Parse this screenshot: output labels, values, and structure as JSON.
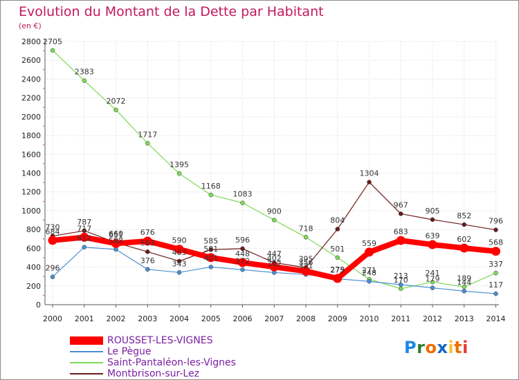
{
  "title": "Evolution du Montant de la Dette par Habitant",
  "unit": "(en €)",
  "logo": {
    "letters": [
      "P",
      "r",
      "o",
      "x",
      "i",
      "t",
      "i"
    ],
    "colors": [
      "#1e88e5",
      "#2e7d32",
      "#ef6c00",
      "#1565c0",
      "#fbc02d",
      "#ef6c00",
      "#e53935"
    ]
  },
  "chart_data": {
    "type": "line",
    "x": [
      "2000",
      "2001",
      "2002",
      "2003",
      "2004",
      "2005",
      "2006",
      "2007",
      "2008",
      "2009",
      "2010",
      "2011",
      "2012",
      "2013",
      "2014"
    ],
    "ylim": [
      0,
      2800
    ],
    "yticks": [
      0,
      200,
      400,
      600,
      800,
      1000,
      1200,
      1400,
      1600,
      1800,
      2000,
      2200,
      2400,
      2600,
      2800
    ],
    "grid": true,
    "legend_position": "bottom-left",
    "series": [
      {
        "name": "ROUSSET-LES-VIGNES",
        "color": "#ff0000",
        "values": [
          684,
          717,
          651,
          676,
          590,
          501,
          448,
          402,
          356,
          279,
          559,
          683,
          639,
          602,
          568
        ]
      },
      {
        "name": "Le Pègue",
        "color": "#4a8fd1",
        "values": [
          296,
          612,
          588,
          376,
          343,
          401,
          372,
          342,
          321,
          275,
          248,
          213,
          179,
          144,
          117
        ]
      },
      {
        "name": "Saint-Pantaléon-les-Vignes",
        "color": "#7ed957",
        "values": [
          2705,
          2383,
          2072,
          1717,
          1395,
          1168,
          1083,
          900,
          718,
          501,
          271,
          170,
          241,
          189,
          337
        ]
      },
      {
        "name": "Montbrison-sur-Lez",
        "color": "#6b1b1b",
        "values": [
          730,
          787,
          660,
          563,
          463,
          585,
          596,
          447,
          395,
          804,
          1304,
          967,
          905,
          852,
          796
        ]
      }
    ]
  }
}
